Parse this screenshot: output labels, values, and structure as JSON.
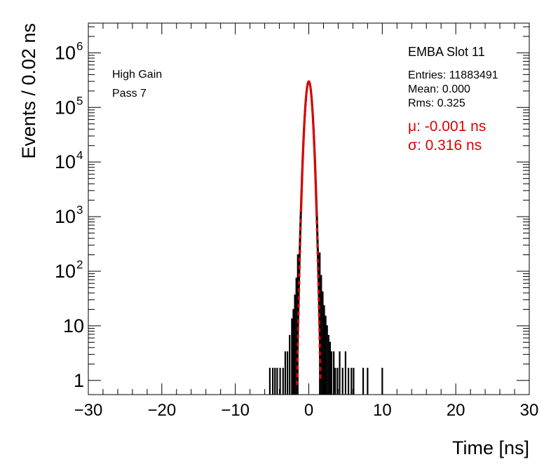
{
  "chart_data": {
    "type": "histogram",
    "xlabel": "Time [ns]",
    "ylabel": "Events / 0.02 ns",
    "xlim": [
      -30,
      30
    ],
    "ylim": [
      0.55,
      3500000
    ],
    "y_scale": "log",
    "x_ticks": [
      -30,
      -20,
      -10,
      0,
      10,
      20,
      30
    ],
    "x_tick_labels": [
      "−30",
      "−20",
      "−10",
      "0",
      "10",
      "20",
      "30"
    ],
    "y_ticks": [
      1,
      10,
      100,
      1000,
      10000,
      100000,
      1000000
    ],
    "y_tick_labels": [
      {
        "base": "1",
        "exp": ""
      },
      {
        "base": "10",
        "exp": ""
      },
      {
        "base": "10",
        "exp": "2"
      },
      {
        "base": "10",
        "exp": "3"
      },
      {
        "base": "10",
        "exp": "4"
      },
      {
        "base": "10",
        "exp": "5"
      },
      {
        "base": "10",
        "exp": "6"
      }
    ],
    "grid": false,
    "histogram": {
      "color": "#000000",
      "peak_counts": 300000,
      "mean": 0.0,
      "sigma_core": 0.325,
      "tail_points": [
        [
          -5.3,
          1
        ],
        [
          -4.9,
          1
        ],
        [
          -4.6,
          1
        ],
        [
          -4.3,
          1
        ],
        [
          -3.9,
          1
        ],
        [
          -3.5,
          1
        ],
        [
          -3.2,
          2
        ],
        [
          -2.9,
          2
        ],
        [
          -2.6,
          4
        ],
        [
          -2.3,
          8
        ],
        [
          -2.1,
          12
        ],
        [
          -1.9,
          22
        ],
        [
          -1.7,
          45
        ],
        [
          -1.5,
          120
        ],
        [
          1.5,
          130
        ],
        [
          1.7,
          50
        ],
        [
          1.9,
          25
        ],
        [
          2.1,
          14
        ],
        [
          2.3,
          9
        ],
        [
          2.5,
          6
        ],
        [
          2.7,
          4
        ],
        [
          2.9,
          3
        ],
        [
          3.1,
          2
        ],
        [
          3.4,
          2
        ],
        [
          3.6,
          1
        ],
        [
          3.9,
          1
        ],
        [
          4.2,
          2
        ],
        [
          4.6,
          1
        ],
        [
          5.0,
          2
        ],
        [
          5.4,
          1
        ],
        [
          5.8,
          1
        ],
        [
          6.1,
          1
        ],
        [
          7.4,
          1
        ],
        [
          8.0,
          1
        ],
        [
          10.0,
          1
        ]
      ]
    },
    "fit": {
      "color": "#e00000",
      "function": "gaussian",
      "mu": -0.001,
      "sigma": 0.316,
      "amplitude": 300000
    }
  },
  "annotations": {
    "label_gain": "High Gain",
    "label_pass": "Pass 7",
    "stats_title": "EMBA Slot 11",
    "stats_entries": "Entries: 11883491",
    "stats_mean": "Mean: 0.000",
    "stats_rms": "Rms: 0.325",
    "fit_mu": "μ: -0.001 ns",
    "fit_sigma": "σ: 0.316 ns"
  }
}
